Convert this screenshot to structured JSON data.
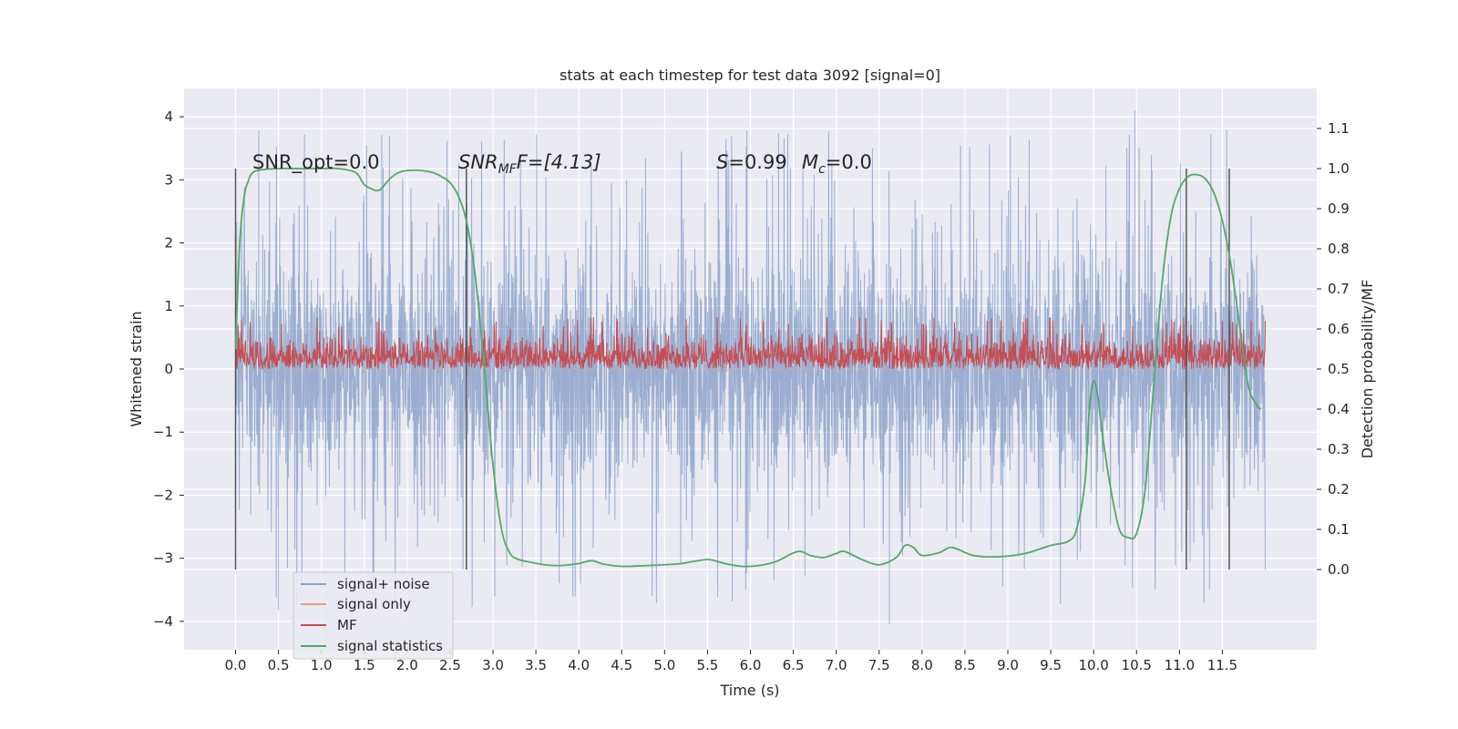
{
  "chart_data": {
    "type": "line",
    "title": "stats at each timestep for test data 3092 [signal=0]",
    "xlabel": "Time (s)",
    "ylabel_left": "Whitened strain",
    "ylabel_right": "Detection probability/MF",
    "xlim": [
      -0.6,
      12.6
    ],
    "ylim_left": [
      -4.45,
      4.45
    ],
    "ylim_right": [
      -0.2,
      1.2
    ],
    "x_ticks": [
      "0.0",
      "0.5",
      "1.0",
      "1.5",
      "2.0",
      "2.5",
      "3.0",
      "3.5",
      "4.0",
      "4.5",
      "5.0",
      "5.5",
      "6.0",
      "6.5",
      "7.0",
      "7.5",
      "8.0",
      "8.5",
      "9.0",
      "9.5",
      "10.0",
      "10.5",
      "11.0",
      "11.5"
    ],
    "y_ticks_left": [
      "−4",
      "−3",
      "−2",
      "−1",
      "0",
      "1",
      "2",
      "3",
      "4"
    ],
    "y_ticks_right": [
      "0.0",
      "0.1",
      "0.2",
      "0.3",
      "0.4",
      "0.5",
      "0.6",
      "0.7",
      "0.8",
      "0.9",
      "1.0",
      "1.1"
    ],
    "grid": true,
    "legend_position": "lower-left",
    "annotations": {
      "snr_opt": "SNR_opt=0.0",
      "snr_mf_base": "SNR",
      "snr_mf_sub": "MF",
      "snr_mf_rest": "F=[4.13]",
      "s_label": "S",
      "s_rest": "=0.99",
      "mc_base": "M",
      "mc_sub": "c",
      "mc_rest": "=0.0"
    },
    "vertical_markers_x": [
      0.0,
      2.69,
      11.08,
      11.58
    ],
    "series": [
      {
        "name": "signal+ noise",
        "color": "#4c72b0",
        "axis": "left",
        "envelope_typical": [
          -1.9,
          1.9
        ],
        "spike_range": [
          -4.05,
          4.1
        ],
        "x_range": [
          0.0,
          12.0
        ]
      },
      {
        "name": "signal only",
        "color": "#dd8452",
        "axis": "left",
        "values_constant": 0.0
      },
      {
        "name": "MF",
        "color": "#c44e52",
        "axis": "right",
        "band": [
          0.5,
          0.6
        ],
        "peak_max": 0.63,
        "x_range": [
          0.0,
          12.0
        ]
      },
      {
        "name": "signal statistics",
        "color": "#55a868",
        "axis": "right",
        "x": [
          0.0,
          0.05,
          0.1,
          0.15,
          0.2,
          0.3,
          0.5,
          0.8,
          1.0,
          1.2,
          1.4,
          1.5,
          1.6,
          1.65,
          1.7,
          1.8,
          1.9,
          2.0,
          2.1,
          2.2,
          2.3,
          2.4,
          2.5,
          2.6,
          2.7,
          2.8,
          2.9,
          3.0,
          3.1,
          3.2,
          3.3,
          3.4,
          3.6,
          3.8,
          4.0,
          4.15,
          4.3,
          4.5,
          4.8,
          5.0,
          5.2,
          5.5,
          5.7,
          5.9,
          6.1,
          6.3,
          6.55,
          6.7,
          6.85,
          7.0,
          7.1,
          7.3,
          7.5,
          7.7,
          7.8,
          7.9,
          8.0,
          8.2,
          8.35,
          8.6,
          8.9,
          9.2,
          9.5,
          9.7,
          9.8,
          9.9,
          9.95,
          10.0,
          10.05,
          10.1,
          10.2,
          10.3,
          10.4,
          10.5,
          10.6,
          10.7,
          10.8,
          10.9,
          11.0,
          11.1,
          11.2,
          11.3,
          11.4,
          11.5,
          11.6,
          11.7,
          11.8,
          11.9,
          11.95
        ],
        "values": [
          0.55,
          0.82,
          0.93,
          0.97,
          0.99,
          0.997,
          1.0,
          1.0,
          1.0,
          1.0,
          0.99,
          0.96,
          0.948,
          0.945,
          0.95,
          0.975,
          0.99,
          0.995,
          0.996,
          0.994,
          0.99,
          0.98,
          0.965,
          0.93,
          0.86,
          0.72,
          0.5,
          0.26,
          0.1,
          0.04,
          0.025,
          0.02,
          0.012,
          0.01,
          0.015,
          0.022,
          0.013,
          0.008,
          0.01,
          0.012,
          0.015,
          0.025,
          0.015,
          0.008,
          0.01,
          0.02,
          0.045,
          0.035,
          0.03,
          0.04,
          0.045,
          0.025,
          0.012,
          0.03,
          0.06,
          0.055,
          0.035,
          0.042,
          0.055,
          0.035,
          0.032,
          0.04,
          0.06,
          0.07,
          0.1,
          0.22,
          0.4,
          0.47,
          0.43,
          0.34,
          0.2,
          0.1,
          0.08,
          0.09,
          0.2,
          0.46,
          0.72,
          0.88,
          0.95,
          0.98,
          0.985,
          0.975,
          0.94,
          0.87,
          0.76,
          0.61,
          0.46,
          0.41,
          0.4
        ]
      }
    ]
  }
}
